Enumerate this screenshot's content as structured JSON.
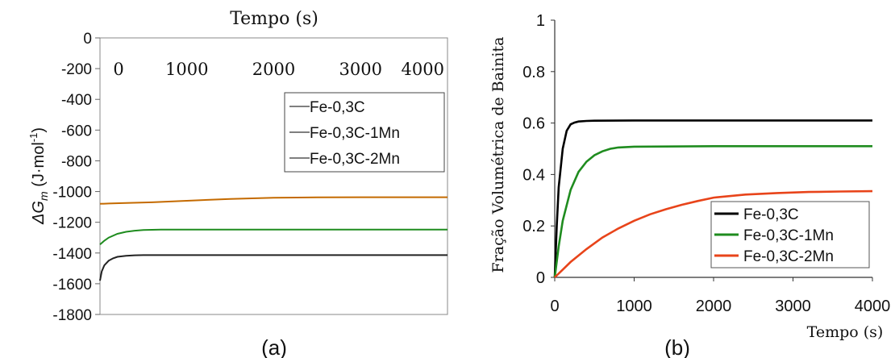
{
  "chart_data": [
    {
      "panel_label": "(a)",
      "type": "line",
      "title": "Tempo (s)",
      "xlabel": "",
      "ylabel": "ΔG",
      "ylabel_sub": "m",
      "ylabel_units": " (J·mol",
      "ylabel_sup": "-1",
      "ylabel_close": ")",
      "xlim": [
        0,
        4000
      ],
      "ylim": [
        -1800,
        0
      ],
      "x_axis_position": "top",
      "x_ticks": [
        "0",
        "1000",
        "2000",
        "3000",
        "4000"
      ],
      "y_ticks": [
        "0",
        "-200",
        "-400",
        "-600",
        "-800",
        "-1000",
        "-1200",
        "-1400",
        "-1600",
        "-1800"
      ],
      "grid": false,
      "legend_position": "upper right",
      "series": [
        {
          "name": "Fe-0,3C",
          "color": "#c46a00",
          "x": [
            0,
            100,
            300,
            600,
            1000,
            1500,
            2000,
            2500,
            3000,
            3500,
            4000
          ],
          "y": [
            -1080,
            -1078,
            -1075,
            -1070,
            -1060,
            -1048,
            -1040,
            -1038,
            -1037,
            -1037,
            -1037
          ]
        },
        {
          "name": "Fe-0,3C-1Mn",
          "color": "#1f8c1f",
          "x": [
            0,
            50,
            100,
            200,
            300,
            400,
            500,
            700,
            1000,
            2000,
            3000,
            4000
          ],
          "y": [
            -1345,
            -1320,
            -1300,
            -1275,
            -1262,
            -1255,
            -1250,
            -1248,
            -1248,
            -1248,
            -1248,
            -1248
          ]
        },
        {
          "name": "Fe-0,3C-2Mn",
          "color": "#222222",
          "x": [
            0,
            20,
            50,
            100,
            150,
            200,
            300,
            400,
            500,
            1000,
            2000,
            3000,
            4000
          ],
          "y": [
            -1580,
            -1520,
            -1480,
            -1450,
            -1435,
            -1425,
            -1418,
            -1415,
            -1414,
            -1414,
            -1414,
            -1414,
            -1414
          ]
        }
      ]
    },
    {
      "panel_label": "(b)",
      "type": "line",
      "title": "",
      "xlabel": "Tempo (s)",
      "ylabel": "Fração Volumétrica de Bainita",
      "xlim": [
        0,
        4000
      ],
      "ylim": [
        0,
        1
      ],
      "x_ticks": [
        "0",
        "1000",
        "2000",
        "3000",
        "4000"
      ],
      "y_ticks": [
        "0",
        "0.2",
        "0.4",
        "0.6",
        "0.8",
        "1"
      ],
      "grid": false,
      "legend_position": "lower right",
      "series": [
        {
          "name": "Fe-0,3C",
          "color": "#000000",
          "x": [
            0,
            25,
            50,
            100,
            150,
            200,
            250,
            300,
            400,
            500,
            1000,
            2000,
            3000,
            4000
          ],
          "y": [
            0,
            0.2,
            0.35,
            0.5,
            0.57,
            0.595,
            0.602,
            0.606,
            0.608,
            0.609,
            0.61,
            0.61,
            0.61,
            0.61
          ]
        },
        {
          "name": "Fe-0,3C-1Mn",
          "color": "#1f8c1f",
          "x": [
            0,
            50,
            100,
            200,
            300,
            400,
            500,
            600,
            700,
            800,
            1000,
            2000,
            3000,
            4000
          ],
          "y": [
            0,
            0.12,
            0.22,
            0.34,
            0.41,
            0.45,
            0.475,
            0.49,
            0.5,
            0.505,
            0.508,
            0.51,
            0.51,
            0.51
          ]
        },
        {
          "name": "Fe-0,3C-2Mn",
          "color": "#e8441a",
          "x": [
            0,
            100,
            200,
            400,
            600,
            800,
            1000,
            1200,
            1400,
            1600,
            1800,
            2000,
            2400,
            2800,
            3200,
            3600,
            4000
          ],
          "y": [
            0,
            0.03,
            0.06,
            0.11,
            0.155,
            0.19,
            0.22,
            0.245,
            0.265,
            0.282,
            0.297,
            0.31,
            0.322,
            0.328,
            0.332,
            0.334,
            0.335
          ]
        }
      ]
    }
  ]
}
